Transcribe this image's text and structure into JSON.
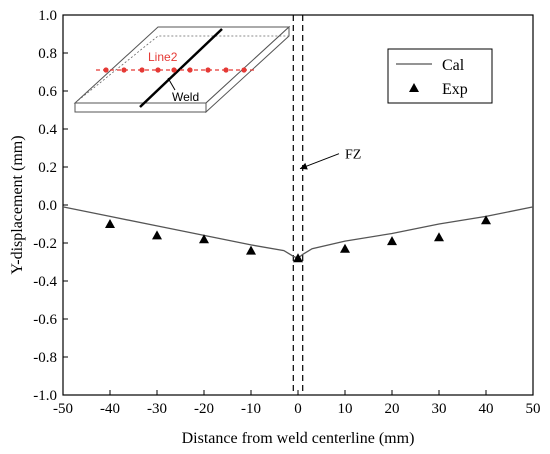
{
  "chart_data": {
    "type": "line",
    "xlabel": "Distance from weld centerline (mm)",
    "ylabel": "Y-displacement (mm)",
    "xlim": [
      -50,
      50
    ],
    "ylim": [
      -1.0,
      1.0
    ],
    "xticks": [
      -50,
      -40,
      -30,
      -20,
      -10,
      0,
      10,
      20,
      30,
      40,
      50
    ],
    "yticks": [
      -1.0,
      -0.8,
      -0.6,
      -0.4,
      -0.2,
      0.0,
      0.2,
      0.4,
      0.6,
      0.8,
      1.0
    ],
    "ytick_labels": [
      "-1.0",
      "-0.8",
      "-0.6",
      "-0.4",
      "-0.2",
      "0.0",
      "0.2",
      "0.4",
      "0.6",
      "0.8",
      "1.0"
    ],
    "grid": false,
    "legend_position": "top-right",
    "series": [
      {
        "name": "Cal",
        "style": "line",
        "color": "#555555",
        "x": [
          -50,
          -40,
          -30,
          -20,
          -10,
          -3,
          -1,
          0,
          1,
          3,
          10,
          20,
          30,
          40,
          50
        ],
        "y": [
          -0.01,
          -0.06,
          -0.11,
          -0.16,
          -0.21,
          -0.24,
          -0.27,
          -0.28,
          -0.26,
          -0.23,
          -0.19,
          -0.15,
          -0.1,
          -0.06,
          -0.01
        ]
      },
      {
        "name": "Exp",
        "style": "triangle-marker",
        "color": "#000000",
        "x": [
          -40,
          -30,
          -20,
          -10,
          0,
          10,
          20,
          30,
          40
        ],
        "y": [
          -0.1,
          -0.16,
          -0.18,
          -0.24,
          -0.28,
          -0.23,
          -0.19,
          -0.17,
          -0.08
        ]
      }
    ],
    "fusion_zone_lines_x": [
      -1,
      1
    ],
    "annotations": [
      {
        "text": "FZ",
        "x": 10,
        "y": 0.27
      }
    ],
    "inset": {
      "line_label": "Line2",
      "weld_label": "Weld"
    }
  }
}
